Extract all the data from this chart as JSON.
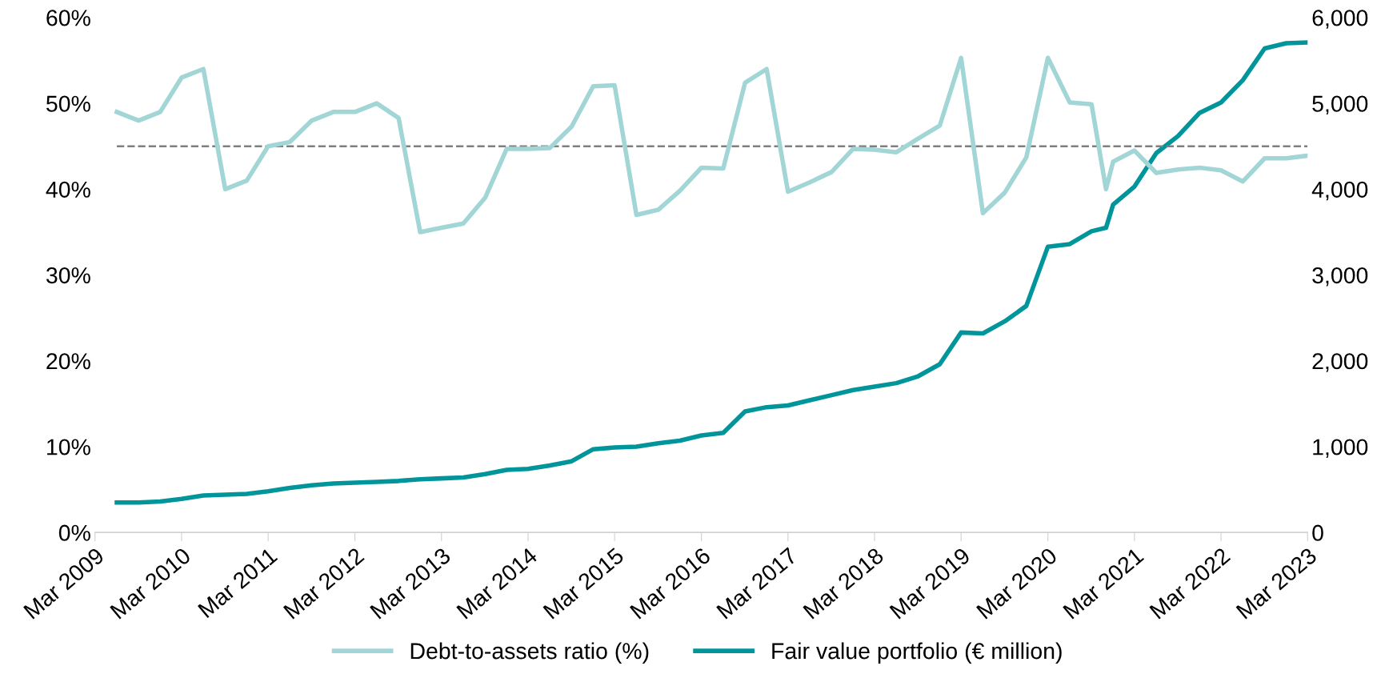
{
  "chart_data": {
    "type": "line",
    "x": [
      "2009-06",
      "2009-09",
      "2009-12",
      "2010-03",
      "2010-06",
      "2010-09",
      "2010-12",
      "2011-03",
      "2011-06",
      "2011-09",
      "2011-12",
      "2012-03",
      "2012-06",
      "2012-09",
      "2012-12",
      "2013-03",
      "2013-06",
      "2013-09",
      "2013-12",
      "2014-03",
      "2014-06",
      "2014-09",
      "2014-12",
      "2015-03",
      "2015-06",
      "2015-09",
      "2015-12",
      "2016-03",
      "2016-06",
      "2016-09",
      "2016-12",
      "2017-03",
      "2017-06",
      "2017-09",
      "2017-12",
      "2018-03",
      "2018-06",
      "2018-09",
      "2018-12",
      "2019-03",
      "2019-06",
      "2019-09",
      "2019-12",
      "2020-03",
      "2020-06",
      "2020-09",
      "2020-11",
      "2020-12",
      "2021-03",
      "2021-06",
      "2021-09",
      "2021-12",
      "2022-03",
      "2022-06",
      "2022-09",
      "2022-12",
      "2023-03"
    ],
    "series": [
      {
        "name": "Debt-to-assets ratio (%)",
        "color": "#a2d6d6",
        "values": [
          49,
          48,
          49,
          53,
          54,
          40,
          41,
          45,
          45.5,
          48,
          49,
          49,
          50,
          48.3,
          35,
          35.5,
          36,
          39,
          44.7,
          44.7,
          44.8,
          47.3,
          52,
          52.1,
          37,
          37.6,
          39.8,
          42.5,
          42.4,
          52.4,
          54,
          39.7,
          40.8,
          42,
          44.7,
          44.6,
          44.3,
          45.9,
          47.4,
          55.3,
          37.2,
          39.6,
          43.7,
          55.3,
          50.1,
          49.9,
          40,
          43.2,
          44.5,
          41.9,
          42.3,
          42.5,
          42.2,
          40.9,
          43.6,
          43.6,
          43.9
        ]
      },
      {
        "name": "Fair value portfolio (€ million)",
        "color": "#00959b",
        "axis": "y2",
        "values": [
          350,
          350,
          360,
          390,
          430,
          440,
          450,
          480,
          520,
          550,
          570,
          580,
          590,
          600,
          620,
          630,
          640,
          680,
          730,
          740,
          780,
          830,
          970,
          990,
          1000,
          1040,
          1070,
          1130,
          1160,
          1410,
          1460,
          1480,
          1540,
          1600,
          1660,
          1700,
          1740,
          1820,
          1960,
          2330,
          2320,
          2460,
          2640,
          3330,
          3360,
          3510,
          3550,
          3820,
          4030,
          4420,
          4620,
          4890,
          5010,
          5270,
          5640,
          5700,
          5710
        ]
      }
    ],
    "xlim": [
      "2009-03",
      "2023-03"
    ],
    "xticks": [
      {
        "value": "2009-03",
        "label": "Mar 2009"
      },
      {
        "value": "2010-03",
        "label": "Mar 2010"
      },
      {
        "value": "2011-03",
        "label": "Mar 2011"
      },
      {
        "value": "2012-03",
        "label": "Mar 2012"
      },
      {
        "value": "2013-03",
        "label": "Mar 2013"
      },
      {
        "value": "2014-03",
        "label": "Mar 2014"
      },
      {
        "value": "2015-03",
        "label": "Mar 2015"
      },
      {
        "value": "2016-03",
        "label": "Mar 2016"
      },
      {
        "value": "2017-03",
        "label": "Mar 2017"
      },
      {
        "value": "2018-03",
        "label": "Mar 2018"
      },
      {
        "value": "2019-03",
        "label": "Mar 2019"
      },
      {
        "value": "2020-03",
        "label": "Mar 2020"
      },
      {
        "value": "2021-03",
        "label": "Mar 2021"
      },
      {
        "value": "2022-03",
        "label": "Mar 2022"
      },
      {
        "value": "2023-03",
        "label": "Mar 2023"
      }
    ],
    "ylim": [
      0,
      60
    ],
    "yticks": [
      {
        "value": 0,
        "label": "0%"
      },
      {
        "value": 10,
        "label": "10%"
      },
      {
        "value": 20,
        "label": "20%"
      },
      {
        "value": 30,
        "label": "30%"
      },
      {
        "value": 40,
        "label": "40%"
      },
      {
        "value": 50,
        "label": "50%"
      },
      {
        "value": 60,
        "label": "60%"
      }
    ],
    "y2lim": [
      0,
      6000
    ],
    "y2ticks": [
      0,
      {
        "value": 1000,
        "label": "1,000"
      },
      {
        "value": 2000,
        "label": "2,000"
      },
      {
        "value": 3000,
        "label": "3,000"
      },
      {
        "value": 4000,
        "label": "4,000"
      },
      {
        "value": 5000,
        "label": "5,000"
      },
      {
        "value": 6000,
        "label": "6,000"
      }
    ],
    "ref_lines": [
      {
        "axis": "y",
        "value": 45,
        "color": "#7f7f7f",
        "line_style": "dashed"
      }
    ],
    "legend": "bottom",
    "grid": false,
    "marker": "none",
    "line_style": "solid"
  }
}
